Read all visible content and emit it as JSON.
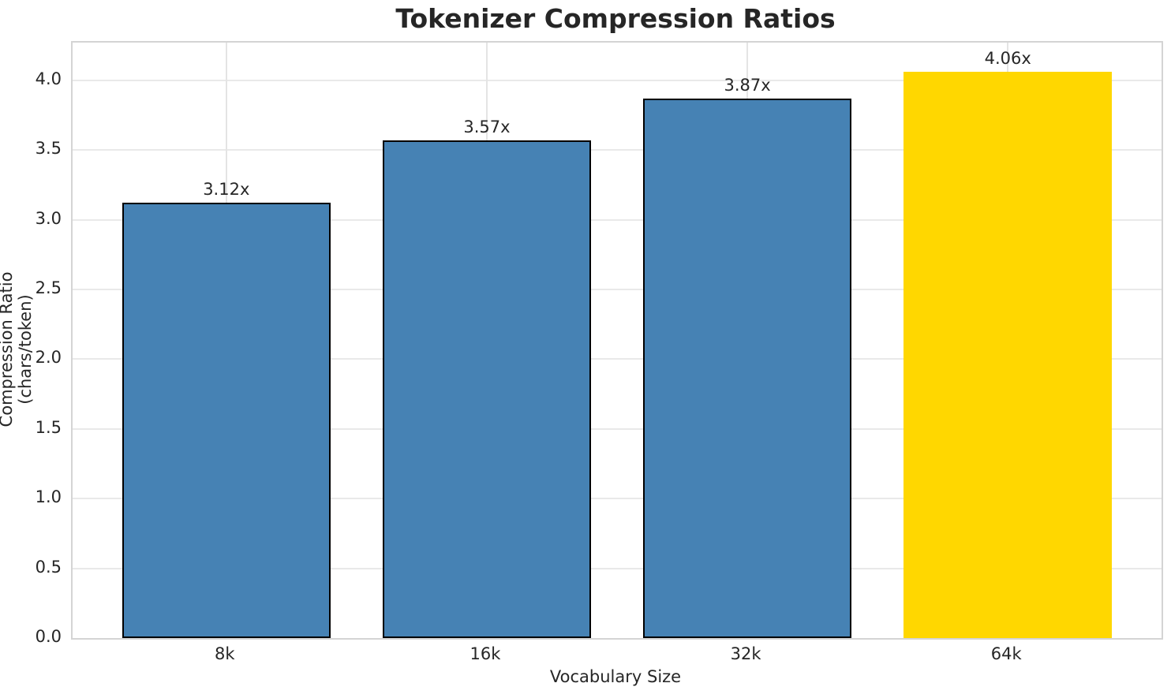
{
  "chart_data": {
    "type": "bar",
    "title": "Tokenizer Compression Ratios",
    "xlabel": "Vocabulary Size",
    "ylabel": "Compression Ratio (chars/token)",
    "categories": [
      "8k",
      "16k",
      "32k",
      "64k"
    ],
    "values": [
      3.12,
      3.57,
      3.87,
      4.06
    ],
    "bar_labels": [
      "3.12x",
      "3.57x",
      "3.87x",
      "4.06x"
    ],
    "bar_colors": [
      "#4682B4",
      "#4682B4",
      "#4682B4",
      "#FFD700"
    ],
    "bar_edge_colors": [
      "#000000",
      "#000000",
      "#000000",
      "none"
    ],
    "bar_width": 0.8,
    "yticks": [
      "0.0",
      "0.5",
      "1.0",
      "1.5",
      "2.0",
      "2.5",
      "3.0",
      "3.5",
      "4.0"
    ],
    "ylim": [
      0,
      4.27
    ],
    "xlim": [
      -0.59,
      3.59
    ],
    "grid": "both",
    "legend": "none",
    "colors": {
      "bar_default": "#4682B4",
      "bar_highlight": "#FFD700",
      "grid": "#e9e9e9",
      "spine": "#d4d4d4",
      "text": "#262626"
    }
  }
}
